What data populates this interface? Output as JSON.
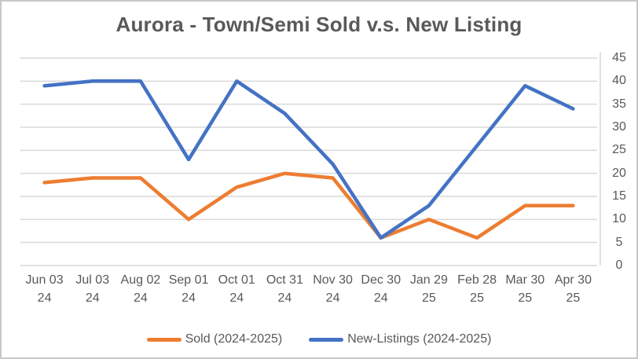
{
  "chart_data": {
    "type": "line",
    "title": "Aurora - Town/Semi Sold v.s. New Listing",
    "categories": [
      "Jun 03 24",
      "Jul 03 24",
      "Aug 02 24",
      "Sep 01 24",
      "Oct 01 24",
      "Oct 31 24",
      "Nov 30 24",
      "Dec 30 24",
      "Jan 29 25",
      "Feb 28 25",
      "Mar 30 25",
      "Apr 30 25"
    ],
    "series": [
      {
        "name": "Sold (2024-2025)",
        "color": "#ED7D31",
        "values": [
          18,
          19,
          19,
          10,
          17,
          20,
          19,
          6,
          10,
          6,
          13,
          13
        ]
      },
      {
        "name": "New-Listings (2024-2025)",
        "color": "#4472C4",
        "values": [
          39,
          40,
          40,
          23,
          40,
          33,
          22,
          6,
          13,
          26,
          39,
          34
        ]
      }
    ],
    "y_axis": {
      "min": 0,
      "max": 45,
      "step": 5,
      "ticks": [
        45,
        40,
        35,
        30,
        25,
        20,
        15,
        10,
        5,
        0
      ],
      "position": "right"
    },
    "x_axis": {
      "label_lines": 2
    },
    "grid": true,
    "legend_position": "bottom"
  },
  "colors": {
    "grid": "#D9D9D9",
    "axis_line": "#D9D9D9",
    "text": "#595959",
    "border": "#C8C8C8",
    "background": "#FFFFFF"
  }
}
